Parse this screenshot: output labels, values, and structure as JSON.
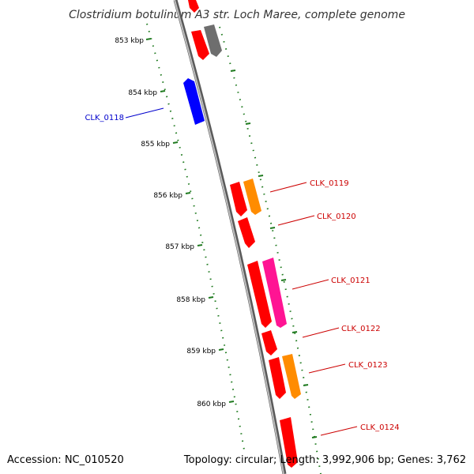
{
  "title": "Clostridium botulinum A3 str. Loch Maree, complete genome",
  "footer": {
    "accession": "Accession: NC_010520",
    "summary": "Topology: circular; Length: 3,992,906 bp; Genes: 3,762"
  },
  "colors": {
    "backbone": "#8c8c8c",
    "tick": "#1f7a1f",
    "label_red": "#cc0000",
    "label_blue": "#0000cc"
  },
  "ticks": [
    {
      "label": "853 kbp"
    },
    {
      "label": "854 kbp"
    },
    {
      "label": "855 kbp"
    },
    {
      "label": "856 kbp"
    },
    {
      "label": "857 kbp"
    },
    {
      "label": "858 kbp"
    },
    {
      "label": "859 kbp"
    },
    {
      "label": "860 kbp"
    }
  ],
  "gene_labels": {
    "clk_0118": "CLK_0118",
    "clk_0119": "CLK_0119",
    "clk_0120": "CLK_0120",
    "clk_0121": "CLK_0121",
    "clk_0122": "CLK_0122",
    "clk_0123": "CLK_0123",
    "clk_0124": "CLK_0124"
  },
  "gene_colors": {
    "red": "#ff0000",
    "blue": "#0000ff",
    "orange": "#ff8c00",
    "magenta": "#ff1493",
    "gray": "#6e6e6e"
  }
}
